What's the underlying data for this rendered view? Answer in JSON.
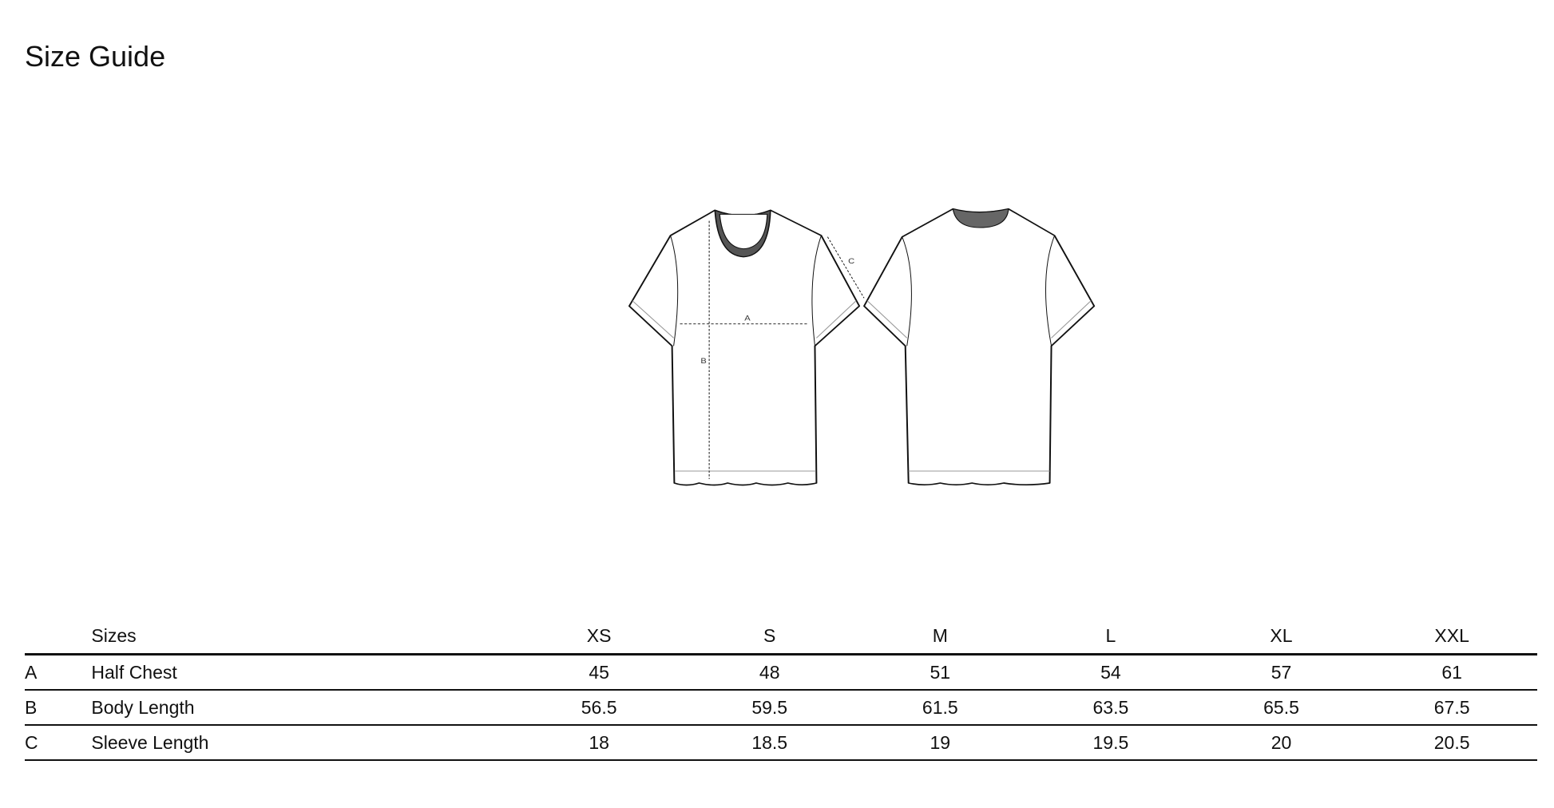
{
  "title": "Size Guide",
  "diagram": {
    "labels": {
      "a": "A",
      "b": "B",
      "c": "C"
    }
  },
  "table": {
    "header": {
      "key": "",
      "label": "Sizes",
      "sizes": [
        "XS",
        "S",
        "M",
        "L",
        "XL",
        "XXL"
      ]
    },
    "rows": [
      {
        "key": "A",
        "label": "Half Chest",
        "values": [
          "45",
          "48",
          "51",
          "54",
          "57",
          "61"
        ]
      },
      {
        "key": "B",
        "label": "Body Length",
        "values": [
          "56.5",
          "59.5",
          "61.5",
          "63.5",
          "65.5",
          "67.5"
        ]
      },
      {
        "key": "C",
        "label": "Sleeve Length",
        "values": [
          "18",
          "18.5",
          "19",
          "19.5",
          "20",
          "20.5"
        ]
      }
    ]
  }
}
